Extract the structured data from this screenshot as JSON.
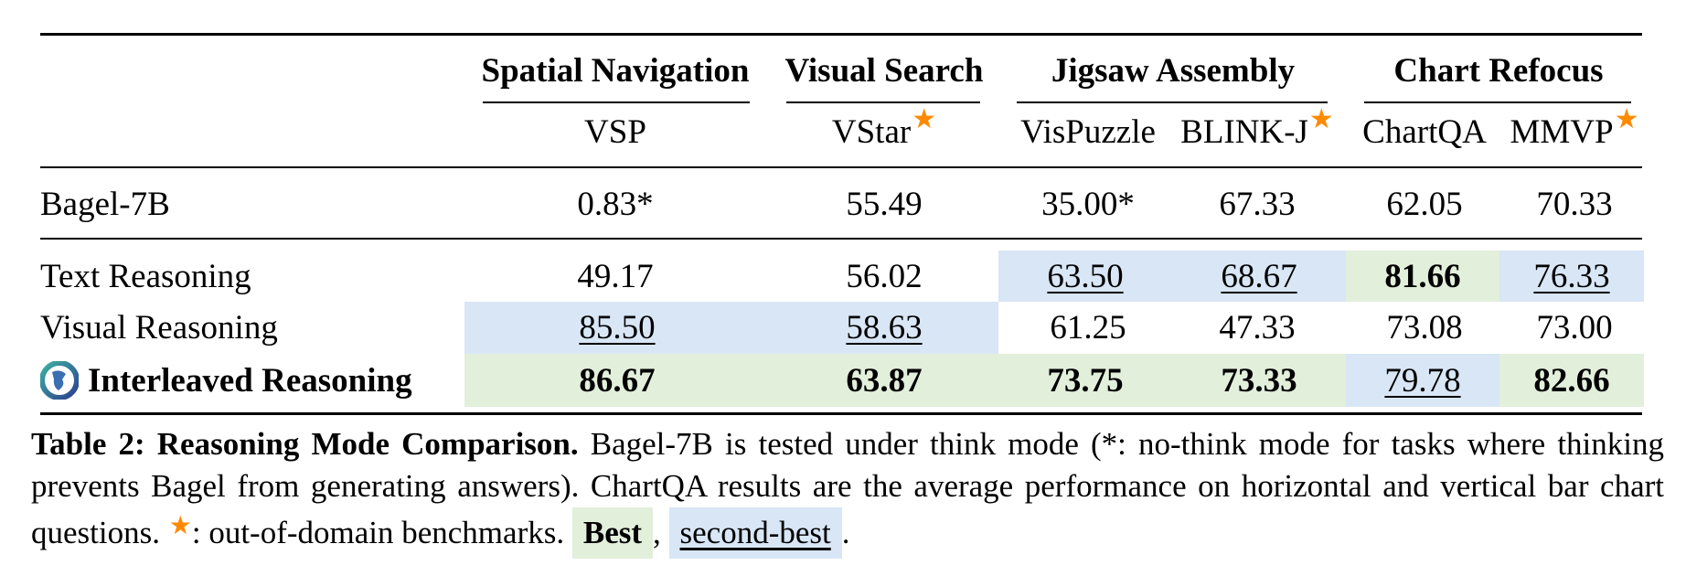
{
  "table": {
    "groups": [
      {
        "label": "Spatial Navigation"
      },
      {
        "label": "Visual Search"
      },
      {
        "label": "Jigsaw Assembly"
      },
      {
        "label": "Chart Refocus"
      }
    ],
    "columns": [
      {
        "label": "VSP",
        "ood": false
      },
      {
        "label": "VStar",
        "ood": true
      },
      {
        "label": "VisPuzzle",
        "ood": false
      },
      {
        "label": "BLINK-J",
        "ood": true
      },
      {
        "label": "ChartQA",
        "ood": false
      },
      {
        "label": "MMVP",
        "ood": true
      }
    ],
    "rows": [
      {
        "method": "Bagel-7B",
        "values": [
          "0.83*",
          "55.49",
          "35.00*",
          "67.33",
          "62.05",
          "70.33"
        ],
        "marks": [
          "",
          "",
          "",
          "",
          "",
          ""
        ]
      },
      {
        "method": "Text Reasoning",
        "values": [
          "49.17",
          "56.02",
          "63.50",
          "68.67",
          "81.66",
          "76.33"
        ],
        "marks": [
          "",
          "",
          "second",
          "second",
          "best",
          "second"
        ]
      },
      {
        "method": "Visual Reasoning",
        "values": [
          "85.50",
          "58.63",
          "61.25",
          "47.33",
          "73.08",
          "73.00"
        ],
        "marks": [
          "second",
          "second",
          "",
          "",
          "",
          ""
        ]
      },
      {
        "method": "Interleaved Reasoning",
        "values": [
          "86.67",
          "63.87",
          "73.75",
          "73.33",
          "79.78",
          "82.66"
        ],
        "marks": [
          "best",
          "best",
          "best",
          "best",
          "second",
          "best"
        ]
      }
    ]
  },
  "caption": {
    "label": "Table 2: Reasoning Mode Comparison.",
    "text1": "Bagel-7B is tested under think mode (*: no-think mode for tasks where thinking prevents Bagel from generating answers). ChartQA results are the average performance on horizontal and vertical bar chart questions.",
    "star_text": ": out-of-domain benchmarks.",
    "best_label": "Best",
    "comma": ",",
    "second_label": "second-best",
    "period": "."
  },
  "colors": {
    "best": "#e2efdb",
    "second": "#d8e6f6",
    "star": "#ff8a00"
  },
  "icons": {
    "method_logo": "circular-logo-icon",
    "ood_marker": "star-icon"
  }
}
